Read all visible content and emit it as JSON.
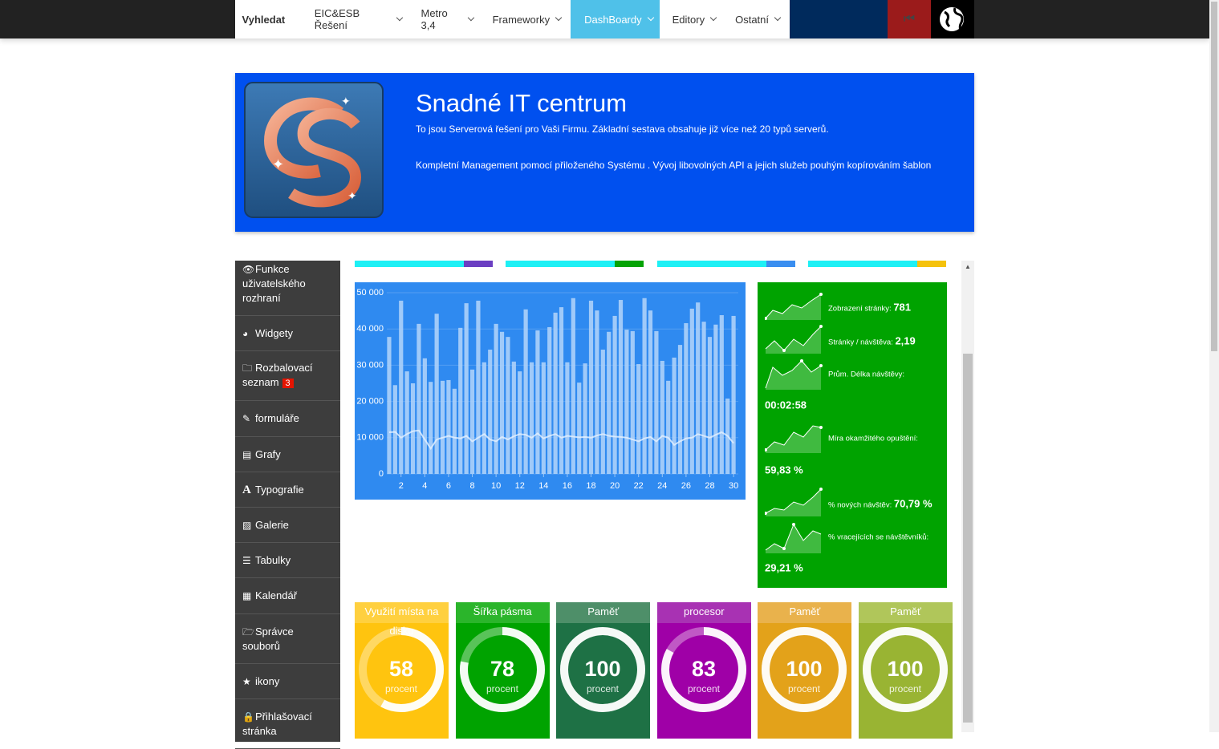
{
  "nav": {
    "search": "Vyhledat",
    "items": [
      "EIC&ESB Řešení",
      "Metro 3,4",
      "Frameworky",
      "DashBoardy",
      "Editory",
      "Ostatní"
    ]
  },
  "banner": {
    "title": "Snadné IT centrum",
    "paragraphs": [
      "To jsou Serverová řešení pro Vaši Firmu. Základní sestava obsahuje již více než 20 typů serverů.",
      "Kompletní Management pomocí přiloženého Systému . Vývoj libovolných API a jejich služeb pouhým kopírováním šablon"
    ]
  },
  "sidebar": {
    "items": [
      "Funkce uživatelského rozhraní",
      "Widgety",
      "Rozbalovací seznam",
      "formuláře",
      "Grafy",
      "Typografie",
      "Galerie",
      "Tabulky",
      "Kalendář",
      "Správce souborů",
      "ikony",
      "Přihlašovací stránka"
    ],
    "badge": 3
  },
  "chart_data": {
    "type": "bar",
    "x": [
      1,
      1.5,
      2,
      2.5,
      3,
      3.5,
      4,
      4.5,
      5,
      5.5,
      6,
      6.5,
      7,
      7.5,
      8,
      8.5,
      9,
      9.5,
      10,
      10.5,
      11,
      11.5,
      12,
      12.5,
      13,
      13.5,
      14,
      14.5,
      15,
      15.5,
      16,
      16.5,
      17,
      17.5,
      18,
      18.5,
      19,
      19.5,
      20,
      20.5,
      21,
      21.5,
      22,
      22.5,
      23,
      23.5,
      24,
      24.5,
      25,
      25.5,
      26,
      26.5,
      27,
      27.5,
      28,
      28.5,
      29,
      29.5,
      30
    ],
    "series": [
      {
        "type": "bar",
        "color": "#b4d5fa",
        "values": [
          37800,
          24500,
          47800,
          28300,
          25000,
          41400,
          31900,
          25400,
          44200,
          25700,
          25900,
          23500,
          40300,
          47100,
          28800,
          47800,
          30800,
          34300,
          41400,
          39200,
          37800,
          31000,
          28300,
          45400,
          30800,
          39600,
          30800,
          40500,
          44500,
          46000,
          30800,
          48500,
          25200,
          30500,
          47800,
          45100,
          34300,
          39200,
          43600,
          48000,
          39800,
          39400,
          30300,
          48500,
          45100,
          39400,
          31200,
          25700,
          32100,
          35600,
          41600,
          45600,
          47300,
          42000,
          37800,
          41200,
          43800,
          20800,
          43600
        ]
      },
      {
        "type": "line",
        "color": "#e6f1ff",
        "values": [
          11500,
          11600,
          10000,
          11000,
          11800,
          12000,
          9500,
          7000,
          9500,
          10000,
          10500,
          10000,
          9800,
          10500,
          9000,
          10000,
          11000,
          9500,
          9000,
          10200,
          9500,
          10400,
          11000,
          10800,
          10000,
          11200,
          9800,
          10500,
          11000,
          10000,
          10500,
          10300,
          10100,
          10200,
          10000,
          10600,
          11000,
          10500,
          10300,
          10200,
          10000,
          9500,
          9000,
          9800,
          10200,
          9000,
          10500,
          10000,
          8000,
          9000,
          9800,
          10000,
          11000,
          10500,
          10000,
          10800,
          11500,
          10500,
          8500
        ]
      }
    ],
    "xlim": [
      0.8,
      30.4
    ],
    "xticks": [
      2,
      4,
      6,
      8,
      10,
      12,
      14,
      16,
      18,
      20,
      22,
      24,
      26,
      28,
      30
    ],
    "ylim": [
      0,
      50000
    ],
    "yticks": [
      0,
      {
        "value": 10000,
        "label": "10 000"
      },
      {
        "value": 20000,
        "label": "20 000"
      },
      {
        "value": 30000,
        "label": "30 000"
      },
      {
        "value": 40000,
        "label": "40 000"
      },
      {
        "value": 50000,
        "label": "50 000"
      }
    ],
    "grid": true,
    "background": "#2f8af0"
  },
  "stats": [
    {
      "label": "Zobrazení stránky:",
      "value": "781"
    },
    {
      "label": "Stránky / návštěva:",
      "value": "2,19"
    },
    {
      "label": "Prům. Délka návštěvy:",
      "value": "00:02:58"
    },
    {
      "label": "Míra okamžitého opuštění:",
      "value": "59,83 %"
    },
    {
      "label": "% nových návštěv:",
      "value": "70,79 %"
    },
    {
      "label": "% vracejících se návštěvníků:",
      "value": "29,21 %"
    }
  ],
  "gauges": [
    {
      "title": "Využití místa na disku",
      "value": 58,
      "unit": "procent",
      "color": "#ffc40f",
      "header_color": "#ffd03f"
    },
    {
      "title": "Šířka pásma",
      "value": 78,
      "unit": "procent",
      "color": "#00a300",
      "header_color": "#2bb52b"
    },
    {
      "title": "Paměť",
      "value": 100,
      "unit": "procent",
      "color": "#1e7145",
      "header_color": "#4e8f69"
    },
    {
      "title": "procesor",
      "value": 83,
      "unit": "procent",
      "color": "#9f00a7",
      "header_color": "#a832b3"
    },
    {
      "title": "Paměť",
      "value": 100,
      "unit": "procent",
      "color": "#e3a21a",
      "header_color": "#e9b24c"
    },
    {
      "title": "Paměť",
      "value": 100,
      "unit": "procent",
      "color": "#99b433",
      "header_color": "#b0c65a"
    }
  ]
}
